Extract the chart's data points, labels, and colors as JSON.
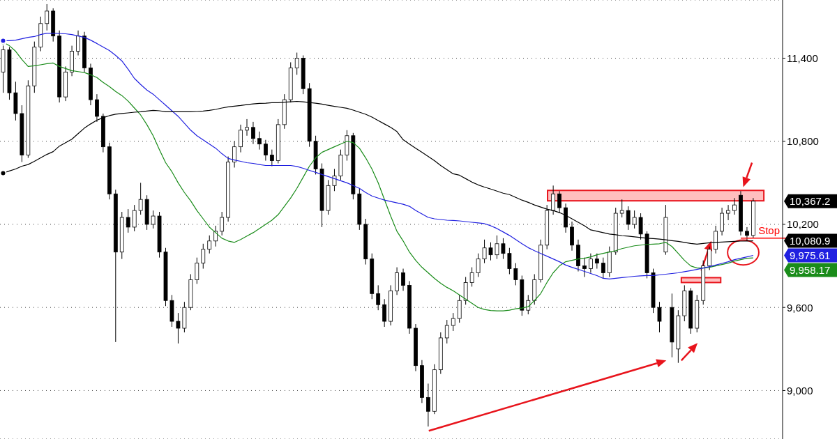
{
  "chart_data": {
    "type": "candlestick",
    "categories": [
      null,
      null,
      null,
      null,
      null,
      null,
      null,
      null,
      null,
      null,
      null,
      null,
      null,
      null,
      null,
      null,
      null,
      null,
      null,
      null,
      null,
      null,
      null,
      null,
      null,
      null,
      null,
      null,
      null,
      null,
      null,
      null,
      null,
      null,
      null,
      null,
      null,
      null,
      null,
      null,
      null,
      null,
      null,
      null,
      null,
      null,
      null,
      null,
      null,
      null,
      null,
      null,
      null,
      null,
      null,
      null,
      null,
      null,
      null,
      null,
      null,
      null,
      null,
      null,
      null,
      null,
      null,
      null,
      null,
      null,
      null,
      null,
      null,
      null,
      null,
      null,
      null,
      null,
      null,
      null,
      null,
      null,
      null,
      null,
      null,
      null,
      null,
      null,
      null,
      null,
      null,
      null,
      null,
      null,
      null,
      null,
      null,
      null,
      null,
      null,
      null,
      null,
      null,
      null,
      null,
      null,
      null,
      null,
      null,
      null,
      null,
      null,
      null,
      null,
      null,
      null,
      null,
      null,
      null,
      null,
      null
    ],
    "ohlc": [
      [
        11300,
        11500,
        11150,
        11460
      ],
      [
        11460,
        11480,
        11100,
        11150
      ],
      [
        11150,
        11230,
        10950,
        11000
      ],
      [
        11000,
        11060,
        10650,
        10700
      ],
      [
        10700,
        11240,
        10680,
        11200
      ],
      [
        11200,
        11520,
        11150,
        11480
      ],
      [
        11480,
        11700,
        11450,
        11650
      ],
      [
        11650,
        11790,
        11600,
        11740
      ],
      [
        11740,
        11760,
        11520,
        11560
      ],
      [
        11560,
        11600,
        11080,
        11120
      ],
      [
        11120,
        11340,
        11090,
        11300
      ],
      [
        11300,
        11490,
        11270,
        11450
      ],
      [
        11450,
        11600,
        11420,
        11560
      ],
      [
        11560,
        11590,
        11300,
        11330
      ],
      [
        11330,
        11360,
        11060,
        11100
      ],
      [
        11100,
        11140,
        10940,
        10980
      ],
      [
        10980,
        11000,
        10720,
        10760
      ],
      [
        10760,
        10790,
        10380,
        10420
      ],
      [
        10420,
        10450,
        9350,
        10000
      ],
      [
        10000,
        10290,
        9950,
        10250
      ],
      [
        10250,
        10310,
        10140,
        10180
      ],
      [
        10180,
        10340,
        10150,
        10300
      ],
      [
        10300,
        10500,
        10270,
        10380
      ],
      [
        10380,
        10410,
        10160,
        10200
      ],
      [
        10200,
        10300,
        10170,
        10260
      ],
      [
        10260,
        10290,
        9960,
        10000
      ],
      [
        10000,
        10030,
        9610,
        9650
      ],
      [
        9650,
        9690,
        9460,
        9500
      ],
      [
        9500,
        9560,
        9340,
        9450
      ],
      [
        9450,
        9640,
        9420,
        9600
      ],
      [
        9600,
        9840,
        9580,
        9800
      ],
      [
        9800,
        9960,
        9770,
        9920
      ],
      [
        9920,
        10060,
        9880,
        10020
      ],
      [
        10020,
        10120,
        9990,
        10080
      ],
      [
        10080,
        10190,
        10040,
        10150
      ],
      [
        10150,
        10290,
        10120,
        10250
      ],
      [
        10250,
        10690,
        10220,
        10650
      ],
      [
        10650,
        10800,
        10610,
        10760
      ],
      [
        10760,
        10920,
        10720,
        10880
      ],
      [
        10880,
        10960,
        10840,
        10900
      ],
      [
        10900,
        10940,
        10780,
        10820
      ],
      [
        10820,
        10870,
        10740,
        10780
      ],
      [
        10780,
        10810,
        10660,
        10700
      ],
      [
        10700,
        10740,
        10620,
        10660
      ],
      [
        10660,
        10960,
        10640,
        10920
      ],
      [
        10920,
        11140,
        10890,
        11100
      ],
      [
        11100,
        11370,
        11080,
        11330
      ],
      [
        11330,
        11440,
        11280,
        11400
      ],
      [
        11400,
        11420,
        11140,
        11180
      ],
      [
        11180,
        11220,
        10760,
        10800
      ],
      [
        10800,
        10840,
        10560,
        10600
      ],
      [
        10600,
        10640,
        10180,
        10300
      ],
      [
        10300,
        10520,
        10270,
        10480
      ],
      [
        10480,
        10600,
        10440,
        10550
      ],
      [
        10550,
        10740,
        10520,
        10700
      ],
      [
        10700,
        10880,
        10660,
        10840
      ],
      [
        10840,
        10860,
        10380,
        10420
      ],
      [
        10420,
        10460,
        10160,
        10200
      ],
      [
        10200,
        10240,
        9910,
        9950
      ],
      [
        9950,
        9990,
        9660,
        9700
      ],
      [
        9700,
        9760,
        9580,
        9620
      ],
      [
        9620,
        9660,
        9460,
        9500
      ],
      [
        9500,
        9760,
        9470,
        9720
      ],
      [
        9720,
        9890,
        9690,
        9850
      ],
      [
        9850,
        9880,
        9720,
        9760
      ],
      [
        9760,
        9790,
        9410,
        9450
      ],
      [
        9450,
        9480,
        9140,
        9180
      ],
      [
        9180,
        9220,
        8910,
        8950
      ],
      [
        8950,
        9050,
        8740,
        8850
      ],
      [
        8850,
        9190,
        8830,
        9150
      ],
      [
        9150,
        9420,
        9120,
        9380
      ],
      [
        9380,
        9510,
        9340,
        9470
      ],
      [
        9470,
        9560,
        9430,
        9520
      ],
      [
        9520,
        9690,
        9490,
        9650
      ],
      [
        9650,
        9820,
        9620,
        9780
      ],
      [
        9780,
        9890,
        9750,
        9850
      ],
      [
        9850,
        9990,
        9820,
        9950
      ],
      [
        9950,
        10090,
        9920,
        10030
      ],
      [
        10030,
        10070,
        9940,
        9980
      ],
      [
        9980,
        10120,
        9950,
        10060
      ],
      [
        10060,
        10100,
        9950,
        9990
      ],
      [
        9990,
        10030,
        9840,
        9880
      ],
      [
        9880,
        9920,
        9760,
        9800
      ],
      [
        9800,
        9830,
        9540,
        9580
      ],
      [
        9580,
        9690,
        9550,
        9650
      ],
      [
        9650,
        9840,
        9620,
        9800
      ],
      [
        9800,
        10090,
        9780,
        10050
      ],
      [
        10050,
        10340,
        10020,
        10300
      ],
      [
        10300,
        10480,
        10270,
        10420
      ],
      [
        10420,
        10440,
        10280,
        10320
      ],
      [
        10320,
        10350,
        10140,
        10180
      ],
      [
        10180,
        10220,
        10010,
        10050
      ],
      [
        10050,
        10090,
        9860,
        9900
      ],
      [
        9900,
        9960,
        9820,
        9880
      ],
      [
        9880,
        9990,
        9850,
        9950
      ],
      [
        9950,
        9990,
        9880,
        9920
      ],
      [
        9920,
        9960,
        9810,
        9850
      ],
      [
        9850,
        10040,
        9820,
        10000
      ],
      [
        10000,
        10320,
        9980,
        10280
      ],
      [
        10280,
        10380,
        10250,
        10300
      ],
      [
        10300,
        10330,
        10160,
        10200
      ],
      [
        10200,
        10300,
        10170,
        10250
      ],
      [
        10250,
        10280,
        10090,
        10130
      ],
      [
        10130,
        10150,
        9810,
        9850
      ],
      [
        9850,
        9880,
        9560,
        9600
      ],
      [
        9600,
        9640,
        9420,
        9500
      ],
      [
        10000,
        10340,
        9980,
        10250
      ],
      [
        9600,
        9700,
        9240,
        9350
      ],
      [
        9300,
        9580,
        9200,
        9540
      ],
      [
        9540,
        9760,
        9500,
        9720
      ],
      [
        9720,
        9740,
        9410,
        9450
      ],
      [
        9450,
        9690,
        9420,
        9650
      ],
      [
        9650,
        9940,
        9620,
        9900
      ],
      [
        9900,
        10040,
        9870,
        10020
      ],
      [
        10020,
        10190,
        9990,
        10150
      ],
      [
        10150,
        10320,
        10120,
        10280
      ],
      [
        10280,
        10340,
        10230,
        10300
      ],
      [
        10300,
        10390,
        10270,
        10340
      ],
      [
        10410,
        10440,
        10120,
        10150
      ],
      [
        10150,
        10180,
        10080,
        10120
      ],
      [
        10120,
        10390,
        10100,
        10367.2
      ]
    ],
    "series": [
      {
        "type": "line",
        "color": "#1a8c1a",
        "values": [
          11516,
          11490,
          11450,
          11390,
          11340,
          11345,
          11352,
          11360,
          11365,
          11340,
          11325,
          11310,
          11303,
          11296,
          11280,
          11260,
          11225,
          11195,
          11160,
          11130,
          11090,
          11040,
          10990,
          10920,
          10840,
          10740,
          10645,
          10580,
          10500,
          10430,
          10370,
          10300,
          10240,
          10180,
          10140,
          10100,
          10080,
          10070,
          10090,
          10115,
          10140,
          10170,
          10200,
          10230,
          10270,
          10330,
          10390,
          10460,
          10540,
          10620,
          10680,
          10720,
          10740,
          10760,
          10780,
          10800,
          10790,
          10750,
          10680,
          10600,
          10500,
          10380,
          10260,
          10150,
          10080,
          10000,
          9940,
          9890,
          9850,
          9810,
          9775,
          9745,
          9720,
          9690,
          9660,
          9630,
          9600,
          9585,
          9578,
          9575,
          9575,
          9580,
          9590,
          9595,
          9605,
          9650,
          9700,
          9780,
          9850,
          9900,
          9930,
          9940,
          9950,
          9955,
          9965,
          9980,
          9990,
          10000,
          10010,
          10025,
          10035,
          10045,
          10050,
          10055,
          10057,
          10060,
          10070,
          10040,
          9990,
          9940,
          9900,
          9885,
          9885,
          9890,
          9900,
          9910,
          9920,
          9935,
          9945,
          9955,
          9958
        ]
      },
      {
        "type": "line",
        "color": "#2020e0",
        "values": [
          11526,
          11526,
          11530,
          11540,
          11550,
          11556,
          11570,
          11580,
          11581,
          11578,
          11576,
          11570,
          11560,
          11550,
          11530,
          11506,
          11480,
          11455,
          11420,
          11380,
          11320,
          11254,
          11210,
          11170,
          11140,
          11100,
          11060,
          11020,
          10980,
          10930,
          10880,
          10840,
          10810,
          10780,
          10750,
          10710,
          10676,
          10665,
          10655,
          10645,
          10640,
          10632,
          10625,
          10625,
          10625,
          10625,
          10625,
          10618,
          10605,
          10590,
          10575,
          10560,
          10545,
          10530,
          10515,
          10500,
          10480,
          10460,
          10430,
          10405,
          10390,
          10375,
          10365,
          10355,
          10345,
          10330,
          10300,
          10275,
          10250,
          10240,
          10235,
          10230,
          10228,
          10225,
          10220,
          10215,
          10210,
          10205,
          10190,
          10170,
          10145,
          10120,
          10090,
          10060,
          10032,
          10010,
          9990,
          9970,
          9950,
          9930,
          9906,
          9890,
          9875,
          9860,
          9845,
          9830,
          9810,
          9805,
          9810,
          9815,
          9820,
          9825,
          9828,
          9831,
          9831,
          9835,
          9840,
          9845,
          9850,
          9858,
          9866,
          9875,
          9885,
          9895,
          9906,
          9918,
          9930,
          9945,
          9955,
          9965,
          9976
        ]
      },
      {
        "type": "line",
        "color": "#000000",
        "values": [
          10570,
          10585,
          10600,
          10620,
          10632,
          10655,
          10680,
          10705,
          10725,
          10765,
          10790,
          10815,
          10855,
          10895,
          10925,
          10952,
          10970,
          10985,
          10995,
          11000,
          11005,
          11010,
          11013,
          11018,
          11023,
          11020,
          11013,
          11013,
          11013,
          11013,
          11013,
          11015,
          11018,
          11023,
          11030,
          11040,
          11048,
          11053,
          11058,
          11065,
          11070,
          11073,
          11075,
          11078,
          11078,
          11082,
          11085,
          11088,
          11085,
          11080,
          11075,
          11068,
          11060,
          11052,
          11045,
          11038,
          11025,
          11010,
          10995,
          10975,
          10950,
          10925,
          10900,
          10870,
          10811,
          10780,
          10750,
          10720,
          10690,
          10660,
          10625,
          10595,
          10565,
          10555,
          10530,
          10505,
          10485,
          10469,
          10455,
          10440,
          10425,
          10415,
          10395,
          10375,
          10359,
          10340,
          10325,
          10310,
          10300,
          10285,
          10265,
          10240,
          10215,
          10190,
          10160,
          10150,
          10140,
          10130,
          10125,
          10118,
          10115,
          10110,
          10105,
          10100,
          10097,
          10093,
          10088,
          10082,
          10077,
          10070,
          10062,
          10057,
          10062,
          10067,
          10070,
          10072,
          10075,
          10077,
          10079,
          10080,
          10081
        ]
      }
    ],
    "ylim": [
      8650,
      11820
    ],
    "yticks": [
      {
        "value": 9000,
        "label": "9,000"
      },
      {
        "value": 9600,
        "label": "9,600"
      },
      {
        "value": 10200,
        "label": "10,200"
      },
      {
        "value": 10800,
        "label": "10,800"
      },
      {
        "value": 11400,
        "label": "11,400"
      }
    ],
    "grid": "y",
    "tick_labels": "y",
    "bands": [
      {
        "axis": "y",
        "from": 10370,
        "to": 10445,
        "color": "#ff8080"
      },
      {
        "axis": "y",
        "from": 9780,
        "to": 9815,
        "color": "#ff8080"
      }
    ],
    "ref_lines": [
      {
        "axis": "y",
        "value": 10100,
        "label": "Stop",
        "color": "#ff0000"
      }
    ],
    "annotations": [
      "10,367.2",
      "10,080.9",
      "9,975.61",
      "9,958.17"
    ]
  }
}
